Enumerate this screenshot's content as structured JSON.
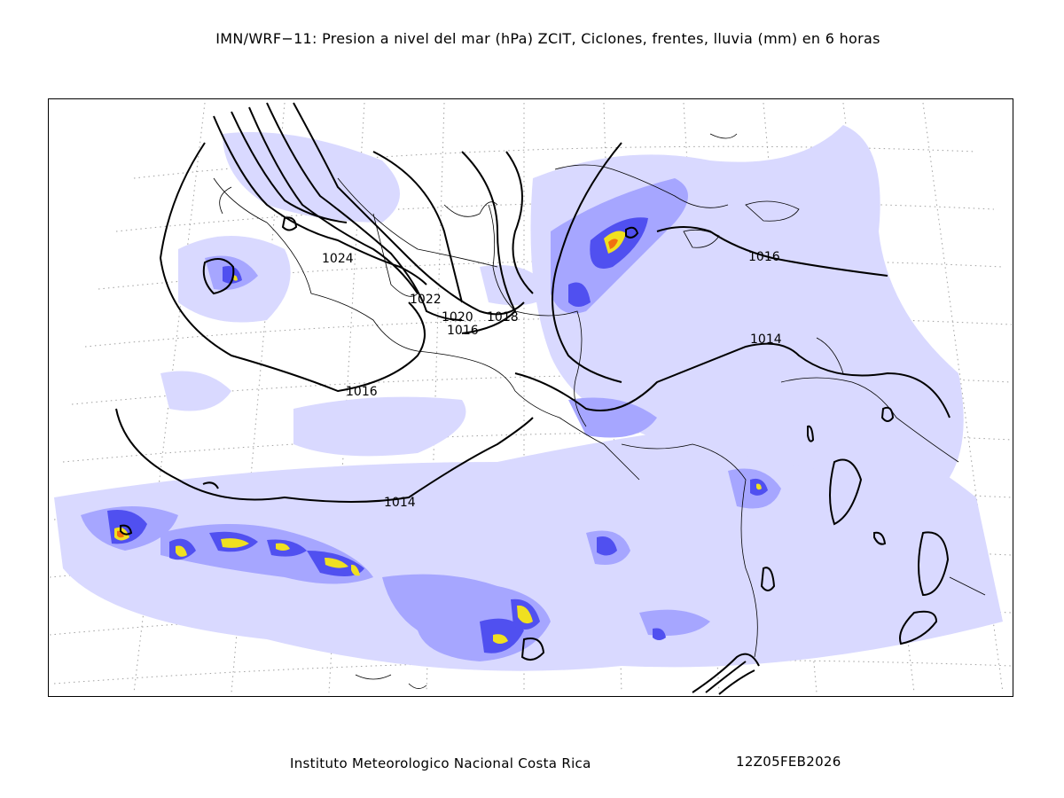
{
  "title": "IMN/WRF−11: Presion a nivel del mar (hPa) ZCIT, Ciclones, frentes, lluvia (mm) en 6 horas",
  "footer": {
    "institution": "Instituto Meteorologico Nacional Costa Rica",
    "datetime": "12Z05FEB2026"
  },
  "map": {
    "isobar_labels": [
      {
        "id": "isobar-label-1024",
        "text": "1024"
      },
      {
        "id": "isobar-label-1022",
        "text": "1022"
      },
      {
        "id": "isobar-label-1020",
        "text": "1020"
      },
      {
        "id": "isobar-label-1018",
        "text": "1018"
      },
      {
        "id": "isobar-label-1016-gulf",
        "text": "1016"
      },
      {
        "id": "isobar-label-1016-west",
        "text": "1016"
      },
      {
        "id": "isobar-label-1016-caribbean",
        "text": "1016"
      },
      {
        "id": "isobar-label-1014-east",
        "text": "1014"
      },
      {
        "id": "isobar-label-1014-south",
        "text": "1014"
      }
    ],
    "colors": {
      "rain_light": "#d9d9ff",
      "rain_medium": "#a6a6ff",
      "rain_heavy": "#5050f0",
      "rain_very_heavy": "#1010e0",
      "rain_extreme": "#f0e020",
      "rain_peak": "#f07010",
      "isobar": "#000000",
      "coastline": "#000000",
      "graticule": "#a0a0a0"
    }
  }
}
